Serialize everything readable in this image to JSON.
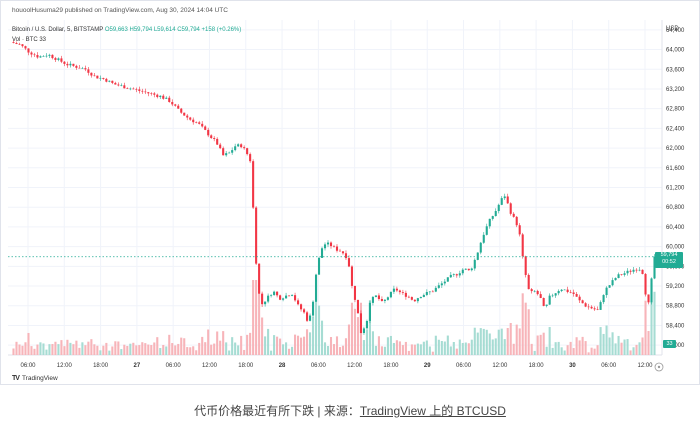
{
  "header": {
    "published": "houoolHusuma29 published on TradingView.com, Aug 30, 2024 14:04 UTC",
    "symbol": "Bitcoin / U.S. Dollar, 5, BITSTAMP",
    "ohlc": "O59,663 H59,794 L59,614 C59,794 +158 (+0.26%)",
    "volume": "Vol · BTC  33"
  },
  "price_axis_unit": "USD",
  "last_price_tag": {
    "price": "59,794",
    "countdown": "00:52"
  },
  "volume_tag": "33",
  "footer_logo": "TradingView",
  "caption": {
    "prefix": "代币价格最近有所下跌 | 来源：",
    "link": "TradingView 上的 BTCUSD"
  },
  "colors": {
    "up": "#22ab94",
    "down": "#f23645",
    "vol_up": "#a6dcd3",
    "vol_down": "#f7b4b9",
    "grid": "#f0f3fa",
    "last_price_line": "#22ab94"
  },
  "chart_data": {
    "type": "candlestick",
    "yticks": [
      "64,400",
      "64,000",
      "63,600",
      "63,200",
      "62,800",
      "62,400",
      "62,000",
      "61,600",
      "61,200",
      "60,800",
      "60,400",
      "60,000",
      "59,600",
      "59,200",
      "58,800",
      "58,400",
      "58,000"
    ],
    "ylim": [
      57,
      800,
      64,
      600
    ],
    "xticks": [
      "06:00",
      "12:00",
      "18:00",
      "27",
      "06:00",
      "12:00",
      "18:00",
      "28",
      "06:00",
      "12:00",
      "18:00",
      "29",
      "06:00",
      "12:00",
      "18:00",
      "30",
      "06:00",
      "12:00"
    ],
    "last_price": 59794,
    "price_path": [
      [
        0,
        64150
      ],
      [
        3,
        64100
      ],
      [
        6,
        63950
      ],
      [
        9,
        63850
      ],
      [
        12,
        63900
      ],
      [
        15,
        63800
      ],
      [
        18,
        63700
      ],
      [
        21,
        63650
      ],
      [
        24,
        63600
      ],
      [
        27,
        63450
      ],
      [
        30,
        63400
      ],
      [
        33,
        63300
      ],
      [
        36,
        63250
      ],
      [
        39,
        63200
      ],
      [
        42,
        63150
      ],
      [
        45,
        63100
      ],
      [
        48,
        63050
      ],
      [
        51,
        62950
      ],
      [
        54,
        62750
      ],
      [
        57,
        62600
      ],
      [
        60,
        62500
      ],
      [
        63,
        62300
      ],
      [
        66,
        62100
      ],
      [
        68,
        61850
      ],
      [
        70,
        61900
      ],
      [
        72,
        62050
      ],
      [
        74,
        62050
      ],
      [
        76,
        61850
      ],
      [
        77,
        61700
      ],
      [
        78,
        60200
      ],
      [
        79,
        59300
      ],
      [
        80,
        58800
      ],
      [
        82,
        58950
      ],
      [
        84,
        59100
      ],
      [
        86,
        58950
      ],
      [
        88,
        59000
      ],
      [
        90,
        59050
      ],
      [
        92,
        58800
      ],
      [
        94,
        58650
      ],
      [
        95,
        58500
      ],
      [
        96,
        58600
      ],
      [
        97,
        59000
      ],
      [
        98,
        59600
      ],
      [
        100,
        60050
      ],
      [
        102,
        60050
      ],
      [
        104,
        59950
      ],
      [
        106,
        59900
      ],
      [
        108,
        59750
      ],
      [
        109,
        59250
      ],
      [
        110,
        59000
      ],
      [
        111,
        58700
      ],
      [
        112,
        58250
      ],
      [
        113,
        58350
      ],
      [
        114,
        58500
      ],
      [
        115,
        58900
      ],
      [
        117,
        59000
      ],
      [
        119,
        58850
      ],
      [
        121,
        59000
      ],
      [
        123,
        59150
      ],
      [
        125,
        59050
      ],
      [
        127,
        59000
      ],
      [
        129,
        58900
      ],
      [
        131,
        59000
      ],
      [
        133,
        59050
      ],
      [
        135,
        59100
      ],
      [
        137,
        59200
      ],
      [
        139,
        59300
      ],
      [
        141,
        59400
      ],
      [
        143,
        59450
      ],
      [
        145,
        59550
      ],
      [
        147,
        59500
      ],
      [
        149,
        59800
      ],
      [
        151,
        60200
      ],
      [
        153,
        60500
      ],
      [
        155,
        60700
      ],
      [
        157,
        60950
      ],
      [
        158,
        61050
      ],
      [
        160,
        60700
      ],
      [
        162,
        60450
      ],
      [
        163,
        60200
      ],
      [
        164,
        59700
      ],
      [
        165,
        59350
      ],
      [
        166,
        59050
      ],
      [
        168,
        59100
      ],
      [
        170,
        58900
      ],
      [
        171,
        58650
      ],
      [
        172,
        58950
      ],
      [
        174,
        59050
      ],
      [
        176,
        59150
      ],
      [
        178,
        59100
      ],
      [
        180,
        59050
      ],
      [
        182,
        58900
      ],
      [
        184,
        58800
      ],
      [
        186,
        58750
      ],
      [
        188,
        58700
      ],
      [
        190,
        59100
      ],
      [
        192,
        59250
      ],
      [
        194,
        59400
      ],
      [
        196,
        59450
      ],
      [
        198,
        59500
      ],
      [
        200,
        59550
      ],
      [
        202,
        59550
      ],
      [
        203,
        59100
      ],
      [
        204,
        58800
      ],
      [
        205,
        59300
      ],
      [
        206,
        59794
      ]
    ],
    "volume_series": [
      {
        "name": "Vol · BTC",
        "note": "relative volume bars (0-1)"
      }
    ]
  }
}
